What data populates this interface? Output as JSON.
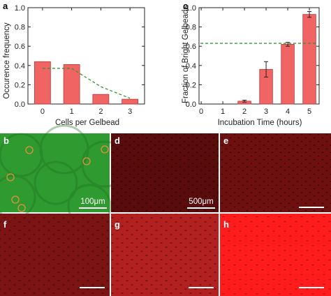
{
  "chart_data": [
    {
      "panel": "a",
      "type": "bar",
      "xlabel": "Cells per Gelbead",
      "ylabel": "Occurence frequency",
      "categories": [
        "0",
        "1",
        "2",
        "3"
      ],
      "values": [
        0.44,
        0.41,
        0.1,
        0.05
      ],
      "dashed_line": {
        "x": [
          0,
          1,
          2,
          3
        ],
        "y": [
          0.37,
          0.37,
          0.18,
          0.06
        ]
      },
      "ylim": [
        0.0,
        1.0
      ],
      "yticks": [
        "0.0",
        "0.2",
        "0.4",
        "0.6",
        "0.8",
        "1.0"
      ],
      "grid": false,
      "bar_color": "#f06464",
      "line_color": "#2e9a2e"
    },
    {
      "panel": "c",
      "type": "bar",
      "xlabel": "Incubation Time (hours)",
      "ylabel": "Fraction of Bright Gelbeads",
      "xticks": [
        "0",
        "1",
        "2",
        "3",
        "4",
        "5"
      ],
      "categories": [
        "2",
        "3",
        "4",
        "5"
      ],
      "values": [
        0.03,
        0.36,
        0.62,
        0.93
      ],
      "errors": [
        0.01,
        0.08,
        0.02,
        0.03
      ],
      "hline": 0.63,
      "ylim": [
        0.0,
        1.0
      ],
      "yticks": [
        "0.0",
        "0.2",
        "0.4",
        "0.6",
        "0.8",
        "1.0"
      ],
      "grid": false,
      "bar_color": "#f06464",
      "line_color": "#2e9a2e"
    }
  ],
  "micrographs": {
    "b": {
      "letter": "b",
      "scale_label": "100μm",
      "bg": "#2f9a2f"
    },
    "d": {
      "letter": "d",
      "scale_label": "500μm",
      "intensity": 0.22
    },
    "e": {
      "letter": "e",
      "scale_label": "",
      "intensity": 0.28
    },
    "f": {
      "letter": "f",
      "scale_label": "",
      "intensity": 0.34
    },
    "g": {
      "letter": "g",
      "scale_label": "",
      "intensity": 0.55
    },
    "h": {
      "letter": "h",
      "scale_label": "",
      "intensity": 0.95
    }
  },
  "panel_letters": {
    "a": "a",
    "c": "c"
  }
}
